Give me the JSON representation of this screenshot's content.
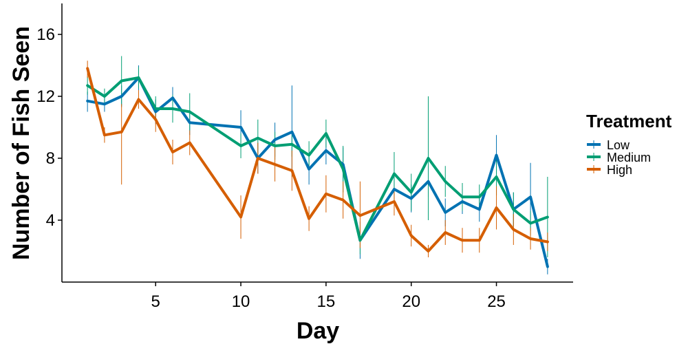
{
  "chart_data": {
    "type": "line",
    "xlabel": "Day",
    "ylabel": "Number of Fish Seen",
    "xlim": [
      -0.5,
      29.5
    ],
    "ylim": [
      0,
      18
    ],
    "x_ticks": [
      5,
      10,
      15,
      20,
      25
    ],
    "y_ticks": [
      4,
      8,
      12,
      16
    ],
    "grid": false,
    "error_bars": true,
    "legend": {
      "title": "Treatment",
      "placement": "right"
    },
    "series": [
      {
        "name": "Low",
        "color": "#0072B2",
        "points": [
          {
            "x": 1,
            "y": 11.7,
            "lo": 11.0,
            "hi": 12.3
          },
          {
            "x": 2,
            "y": 11.5,
            "lo": 11.0,
            "hi": 12.0
          },
          {
            "x": 3,
            "y": 12.0,
            "lo": 11.3,
            "hi": 12.7
          },
          {
            "x": 4,
            "y": 13.2,
            "lo": 12.4,
            "hi": 14.0
          },
          {
            "x": 5,
            "y": 11.0,
            "lo": 10.2,
            "hi": 11.8
          },
          {
            "x": 6,
            "y": 11.9,
            "lo": 11.2,
            "hi": 12.6
          },
          {
            "x": 7,
            "y": 10.3,
            "lo": 9.5,
            "hi": 11.1
          },
          {
            "x": 10,
            "y": 10.0,
            "lo": 8.9,
            "hi": 11.1
          },
          {
            "x": 11,
            "y": 8.0,
            "lo": 7.0,
            "hi": 9.0
          },
          {
            "x": 12,
            "y": 9.2,
            "lo": 8.1,
            "hi": 10.3
          },
          {
            "x": 13,
            "y": 9.7,
            "lo": 6.8,
            "hi": 12.7
          },
          {
            "x": 14,
            "y": 7.3,
            "lo": 6.3,
            "hi": 8.3
          },
          {
            "x": 15,
            "y": 8.5,
            "lo": 7.6,
            "hi": 9.4
          },
          {
            "x": 16,
            "y": 7.6,
            "lo": 6.5,
            "hi": 8.7
          },
          {
            "x": 17,
            "y": 2.7,
            "lo": 1.5,
            "hi": 3.9
          },
          {
            "x": 19,
            "y": 6.0,
            "lo": 5.2,
            "hi": 6.8
          },
          {
            "x": 20,
            "y": 5.4,
            "lo": 4.5,
            "hi": 6.3
          },
          {
            "x": 21,
            "y": 6.5,
            "lo": 5.5,
            "hi": 7.5
          },
          {
            "x": 22,
            "y": 4.5,
            "lo": 3.6,
            "hi": 5.4
          },
          {
            "x": 23,
            "y": 5.2,
            "lo": 4.4,
            "hi": 6.0
          },
          {
            "x": 24,
            "y": 4.7,
            "lo": 3.9,
            "hi": 5.5
          },
          {
            "x": 25,
            "y": 8.2,
            "lo": 6.9,
            "hi": 9.5
          },
          {
            "x": 26,
            "y": 4.7,
            "lo": 3.6,
            "hi": 5.8
          },
          {
            "x": 27,
            "y": 5.5,
            "lo": 3.3,
            "hi": 7.7
          },
          {
            "x": 28,
            "y": 1.0,
            "lo": 0.5,
            "hi": 1.5
          }
        ]
      },
      {
        "name": "Medium",
        "color": "#009E73",
        "points": [
          {
            "x": 1,
            "y": 12.7,
            "lo": 12.1,
            "hi": 13.3
          },
          {
            "x": 2,
            "y": 12.0,
            "lo": 11.5,
            "hi": 12.5
          },
          {
            "x": 3,
            "y": 13.0,
            "lo": 11.4,
            "hi": 14.6
          },
          {
            "x": 4,
            "y": 13.2,
            "lo": 12.5,
            "hi": 13.9
          },
          {
            "x": 5,
            "y": 11.2,
            "lo": 10.4,
            "hi": 12.0
          },
          {
            "x": 6,
            "y": 11.2,
            "lo": 10.3,
            "hi": 12.1
          },
          {
            "x": 7,
            "y": 11.0,
            "lo": 9.8,
            "hi": 12.2
          },
          {
            "x": 10,
            "y": 8.8,
            "lo": 8.0,
            "hi": 9.6
          },
          {
            "x": 11,
            "y": 9.3,
            "lo": 8.3,
            "hi": 10.5
          },
          {
            "x": 12,
            "y": 8.8,
            "lo": 7.9,
            "hi": 9.7
          },
          {
            "x": 13,
            "y": 8.9,
            "lo": 8.1,
            "hi": 9.7
          },
          {
            "x": 14,
            "y": 8.2,
            "lo": 7.3,
            "hi": 9.1
          },
          {
            "x": 15,
            "y": 9.6,
            "lo": 8.7,
            "hi": 10.5
          },
          {
            "x": 16,
            "y": 7.3,
            "lo": 5.8,
            "hi": 8.8
          },
          {
            "x": 17,
            "y": 2.7,
            "lo": 1.8,
            "hi": 3.6
          },
          {
            "x": 19,
            "y": 7.0,
            "lo": 5.6,
            "hi": 8.4
          },
          {
            "x": 20,
            "y": 5.8,
            "lo": 4.6,
            "hi": 7.0
          },
          {
            "x": 21,
            "y": 8.0,
            "lo": 4.0,
            "hi": 12.0
          },
          {
            "x": 22,
            "y": 6.5,
            "lo": 5.5,
            "hi": 7.5
          },
          {
            "x": 23,
            "y": 5.5,
            "lo": 4.6,
            "hi": 6.4
          },
          {
            "x": 24,
            "y": 5.5,
            "lo": 4.7,
            "hi": 6.3
          },
          {
            "x": 25,
            "y": 6.8,
            "lo": 5.6,
            "hi": 8.0
          },
          {
            "x": 26,
            "y": 4.7,
            "lo": 3.6,
            "hi": 5.8
          },
          {
            "x": 27,
            "y": 3.8,
            "lo": 3.0,
            "hi": 4.6
          },
          {
            "x": 28,
            "y": 4.2,
            "lo": 1.6,
            "hi": 6.8
          }
        ]
      },
      {
        "name": "High",
        "color": "#D55E00",
        "points": [
          {
            "x": 1,
            "y": 13.8,
            "lo": 13.2,
            "hi": 14.3
          },
          {
            "x": 2,
            "y": 9.5,
            "lo": 9.0,
            "hi": 10.0
          },
          {
            "x": 3,
            "y": 9.7,
            "lo": 6.3,
            "hi": 11.5
          },
          {
            "x": 4,
            "y": 11.8,
            "lo": 11.2,
            "hi": 12.4
          },
          {
            "x": 5,
            "y": 10.5,
            "lo": 9.7,
            "hi": 11.3
          },
          {
            "x": 6,
            "y": 8.4,
            "lo": 7.6,
            "hi": 9.2
          },
          {
            "x": 7,
            "y": 9.0,
            "lo": 8.2,
            "hi": 9.8
          },
          {
            "x": 10,
            "y": 4.2,
            "lo": 2.8,
            "hi": 5.6
          },
          {
            "x": 11,
            "y": 8.0,
            "lo": 7.0,
            "hi": 9.0
          },
          {
            "x": 12,
            "y": 7.6,
            "lo": 6.5,
            "hi": 8.7
          },
          {
            "x": 13,
            "y": 7.2,
            "lo": 5.9,
            "hi": 8.5
          },
          {
            "x": 14,
            "y": 4.1,
            "lo": 3.3,
            "hi": 4.9
          },
          {
            "x": 15,
            "y": 5.7,
            "lo": 4.5,
            "hi": 6.9
          },
          {
            "x": 16,
            "y": 5.3,
            "lo": 4.1,
            "hi": 6.5
          },
          {
            "x": 17,
            "y": 4.3,
            "lo": 2.2,
            "hi": 6.5
          },
          {
            "x": 19,
            "y": 5.2,
            "lo": 4.3,
            "hi": 6.1
          },
          {
            "x": 20,
            "y": 3.0,
            "lo": 2.3,
            "hi": 3.7
          },
          {
            "x": 21,
            "y": 2.0,
            "lo": 1.6,
            "hi": 2.4
          },
          {
            "x": 22,
            "y": 3.2,
            "lo": 2.4,
            "hi": 4.0
          },
          {
            "x": 23,
            "y": 2.7,
            "lo": 1.9,
            "hi": 3.5
          },
          {
            "x": 24,
            "y": 2.7,
            "lo": 1.9,
            "hi": 3.5
          },
          {
            "x": 25,
            "y": 4.8,
            "lo": 3.4,
            "hi": 6.2
          },
          {
            "x": 26,
            "y": 3.4,
            "lo": 2.4,
            "hi": 4.4
          },
          {
            "x": 27,
            "y": 2.8,
            "lo": 2.1,
            "hi": 3.5
          },
          {
            "x": 28,
            "y": 2.6,
            "lo": 2.0,
            "hi": 3.2
          }
        ]
      }
    ]
  }
}
